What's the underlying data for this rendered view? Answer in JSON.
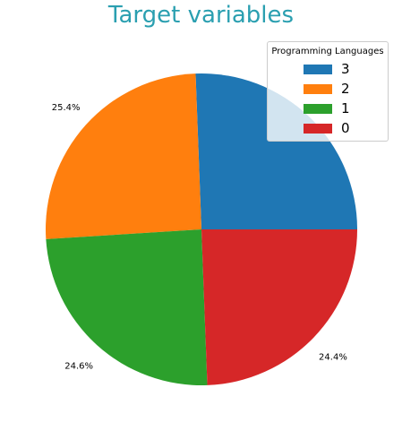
{
  "chart_data": {
    "type": "pie",
    "title": "Target variables",
    "legend": {
      "title": "Programming Languages",
      "placement": "top-right",
      "entries": [
        "3",
        "2",
        "1",
        "0"
      ]
    },
    "slices": [
      {
        "label": "3",
        "value": 25.6,
        "color": "#1f77b4",
        "percent_label": ""
      },
      {
        "label": "2",
        "value": 25.4,
        "color": "#ff7f0e",
        "percent_label": "25.4%"
      },
      {
        "label": "1",
        "value": 24.6,
        "color": "#2ca02c",
        "percent_label": "24.6%"
      },
      {
        "label": "0",
        "value": 24.4,
        "color": "#d62728",
        "percent_label": "24.4%"
      }
    ]
  }
}
